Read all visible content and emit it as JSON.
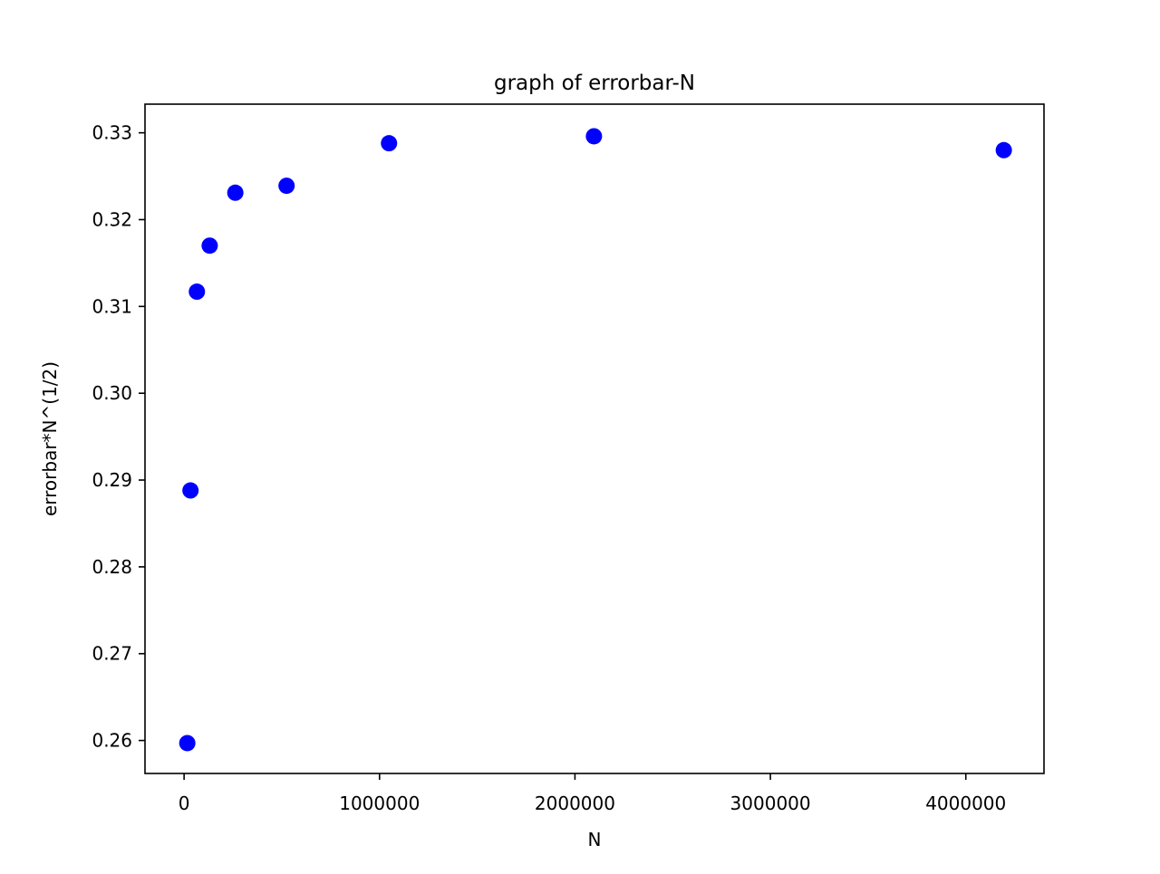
{
  "chart_data": {
    "type": "scatter",
    "title": "graph of errorbar-N",
    "xlabel": "N",
    "ylabel": "errorbar*N^(1/2)",
    "xlim": [
      -200000,
      4400000
    ],
    "ylim": [
      0.2562,
      0.3333
    ],
    "xticks": [
      0,
      1000000,
      2000000,
      3000000,
      4000000
    ],
    "xtick_labels": [
      "0",
      "1000000",
      "2000000",
      "3000000",
      "4000000"
    ],
    "yticks": [
      0.26,
      0.27,
      0.28,
      0.29,
      0.3,
      0.31,
      0.32,
      0.33
    ],
    "ytick_labels": [
      "0.26",
      "0.27",
      "0.28",
      "0.29",
      "0.30",
      "0.31",
      "0.32",
      "0.33"
    ],
    "grid": false,
    "series": [
      {
        "marker_color": "#0000ff",
        "x": [
          16384,
          32768,
          65536,
          131072,
          262144,
          524288,
          1048576,
          2097152,
          4194304
        ],
        "y": [
          0.2597,
          0.2888,
          0.3117,
          0.317,
          0.3231,
          0.3239,
          0.3288,
          0.3296,
          0.328
        ]
      }
    ]
  }
}
